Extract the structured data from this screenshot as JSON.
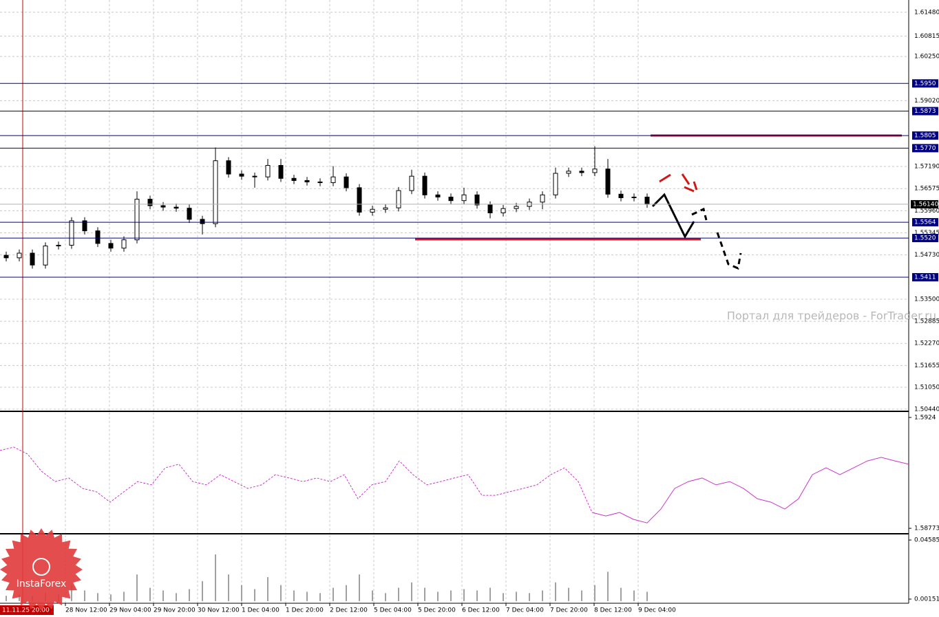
{
  "chart_data": [
    {
      "type": "candlestick",
      "open": [
        1.5472,
        1.5465,
        1.5478,
        1.5445,
        1.5498,
        1.55,
        1.5568,
        1.554,
        1.5505,
        1.5492,
        1.5515,
        1.5628,
        1.561,
        1.5606,
        1.5603,
        1.5572,
        1.556,
        1.5735,
        1.5698,
        1.5692,
        1.569,
        1.5722,
        1.5686,
        1.568,
        1.5676,
        1.5674,
        1.569,
        1.566,
        1.5592,
        1.56,
        1.5604,
        1.5652,
        1.5692,
        1.564,
        1.5634,
        1.5624,
        1.564,
        1.5612,
        1.559,
        1.5602,
        1.5608,
        1.562,
        1.564,
        1.57,
        1.5706,
        1.5702,
        1.5712,
        1.5642,
        1.5632,
        1.5634
      ],
      "high": [
        1.5482,
        1.5488,
        1.5488,
        1.5508,
        1.551,
        1.5578,
        1.5578,
        1.555,
        1.5515,
        1.5525,
        1.565,
        1.5638,
        1.562,
        1.5616,
        1.5613,
        1.5582,
        1.5772,
        1.5745,
        1.5708,
        1.5702,
        1.574,
        1.574,
        1.5696,
        1.569,
        1.5686,
        1.572,
        1.57,
        1.567,
        1.561,
        1.5614,
        1.5662,
        1.571,
        1.5702,
        1.565,
        1.5644,
        1.566,
        1.565,
        1.5622,
        1.5612,
        1.5618,
        1.563,
        1.565,
        1.5716,
        1.5716,
        1.5716,
        1.5775,
        1.574,
        1.5652,
        1.5644,
        1.5644
      ],
      "low": [
        1.5455,
        1.5455,
        1.5435,
        1.5435,
        1.5488,
        1.549,
        1.553,
        1.5495,
        1.5482,
        1.5482,
        1.5505,
        1.56,
        1.5596,
        1.5593,
        1.5562,
        1.553,
        1.555,
        1.5688,
        1.5682,
        1.566,
        1.568,
        1.5676,
        1.567,
        1.5666,
        1.5664,
        1.5664,
        1.565,
        1.5582,
        1.5582,
        1.559,
        1.5594,
        1.5642,
        1.563,
        1.5624,
        1.5614,
        1.5614,
        1.5602,
        1.5575,
        1.558,
        1.5592,
        1.5598,
        1.56,
        1.563,
        1.569,
        1.5692,
        1.5692,
        1.5632,
        1.5622,
        1.5622,
        1.5604
      ],
      "close": [
        1.5465,
        1.5478,
        1.5445,
        1.5498,
        1.55,
        1.5568,
        1.554,
        1.5505,
        1.5492,
        1.5515,
        1.5628,
        1.561,
        1.5606,
        1.5603,
        1.5572,
        1.556,
        1.5735,
        1.5698,
        1.5692,
        1.569,
        1.5722,
        1.5686,
        1.568,
        1.5676,
        1.5674,
        1.569,
        1.566,
        1.5592,
        1.56,
        1.5604,
        1.5652,
        1.5692,
        1.564,
        1.5634,
        1.5624,
        1.564,
        1.5612,
        1.559,
        1.5602,
        1.5608,
        1.562,
        1.564,
        1.57,
        1.5706,
        1.5702,
        1.5712,
        1.5642,
        1.5632,
        1.5634,
        1.5614
      ],
      "ylim": [
        1.504,
        1.6182
      ],
      "yticks": [
        {
          "value": 1.6148,
          "label": "1.61480"
        },
        1.60815,
        {
          "value": 1.6025,
          "label": "1.60250"
        },
        {
          "value": 1.5902,
          "label": "1.59020"
        },
        {
          "value": 1.5719,
          "label": "1.57190"
        },
        1.56575,
        {
          "value": 1.5596,
          "label": "1.55960"
        },
        1.55345,
        {
          "value": 1.5473,
          "label": "1.54730"
        },
        {
          "value": 1.535,
          "label": "1.53500"
        },
        1.52885,
        {
          "value": 1.5227,
          "label": "1.52270"
        },
        1.51655,
        {
          "value": 1.5105,
          "label": "1.51050"
        },
        {
          "value": 1.5044,
          "label": "1.50440"
        }
      ],
      "levels": [
        {
          "value": 1.595,
          "label": "1.5950"
        },
        1.5873,
        1.5805,
        {
          "value": 1.577,
          "label": "1.5770"
        },
        1.5564,
        {
          "value": 1.552,
          "label": "1.5520"
        },
        1.5411
      ],
      "last_price": {
        "value": 1.5614,
        "label": "1.56140"
      },
      "grid": true
    },
    {
      "type": "line",
      "color": "#cc33cc",
      "values": [
        1.59101,
        1.59115,
        1.59086,
        1.59014,
        1.5897,
        1.58985,
        1.58941,
        1.58927,
        1.58883,
        1.58927,
        1.5897,
        1.58956,
        1.59028,
        1.59043,
        1.5897,
        1.58956,
        1.58999,
        1.5897,
        1.58941,
        1.58956,
        1.58999,
        1.58985,
        1.5897,
        1.58985,
        1.5897,
        1.58999,
        1.58898,
        1.58956,
        1.5897,
        1.59057,
        1.58999,
        1.58956,
        1.5897,
        1.58985,
        1.58999,
        1.58912,
        1.58912,
        1.58927,
        1.58941,
        1.58956,
        1.58999,
        1.59028,
        1.5897,
        1.5884,
        1.58825,
        1.5884,
        1.58811,
        1.58796,
        1.58854,
        1.58941,
        1.5897,
        1.58985,
        1.58956,
        1.5897,
        1.58941,
        1.58898,
        1.58883,
        1.58854,
        1.58898,
        1.58999,
        1.59028,
        1.58999,
        1.59028,
        1.59057,
        1.59072,
        1.59057,
        1.59043
      ],
      "ylim": [
        1.58753,
        1.5926
      ],
      "yticks": [
        1.5924,
        1.58773
      ]
    },
    {
      "type": "bar",
      "color": "#a0a0a0",
      "values": [
        0.004,
        0.005,
        0.004,
        0.006,
        0.005,
        0.012,
        0.008,
        0.006,
        0.005,
        0.007,
        0.02,
        0.01,
        0.008,
        0.006,
        0.009,
        0.015,
        0.035,
        0.02,
        0.012,
        0.009,
        0.018,
        0.012,
        0.008,
        0.007,
        0.006,
        0.01,
        0.012,
        0.02,
        0.008,
        0.006,
        0.01,
        0.014,
        0.01,
        0.007,
        0.008,
        0.009,
        0.008,
        0.01,
        0.006,
        0.007,
        0.006,
        0.008,
        0.014,
        0.01,
        0.008,
        0.012,
        0.022,
        0.01,
        0.008,
        0.007
      ],
      "ylim": [
        -0.0016,
        0.0495
      ],
      "yticks": [
        0.04585,
        0.00151
      ]
    }
  ],
  "x_labels": [
    "28 Nov 12:00",
    "29 Nov 04:00",
    "29 Nov 20:00",
    "30 Nov 12:00",
    "1 Dec 04:00",
    "1 Dec 20:00",
    "2 Dec 12:00",
    "5 Dec 04:00",
    "5 Dec 20:00",
    "6 Dec 12:00",
    "7 Dec 04:00",
    "7 Dec 20:00",
    "8 Dec 12:00",
    "9 Dec 04:00"
  ],
  "cursor_time": "11.11.25 20:00",
  "watermark": "Портал для трейдеров - ForTrader.ru",
  "logo": "InstaForex"
}
